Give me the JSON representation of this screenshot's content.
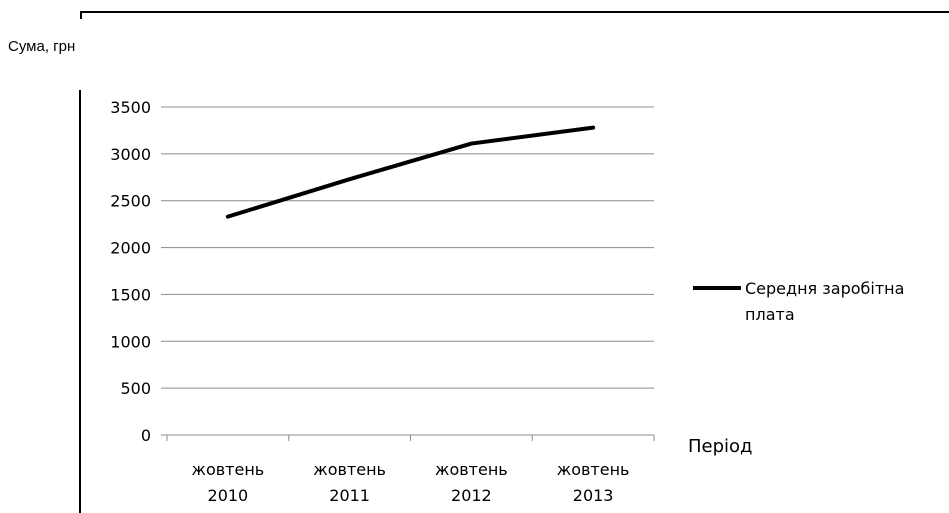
{
  "chart_data": {
    "type": "line",
    "ylabel": "Сума, грн",
    "xlabel": "Період",
    "categories": [
      [
        "жовтень",
        "2010"
      ],
      [
        "жовтень",
        "2011"
      ],
      [
        "жовтень",
        "2012"
      ],
      [
        "жовтень",
        "2013"
      ]
    ],
    "ylim": [
      0,
      3500
    ],
    "yticks": [
      0,
      500,
      1000,
      1500,
      2000,
      2500,
      3000,
      3500
    ],
    "grid": true,
    "legend_position": "right",
    "series": [
      {
        "name": [
          "Середня заробітна",
          "плата"
        ],
        "values": [
          2330,
          2730,
          3110,
          3280
        ],
        "color": "#000000"
      }
    ]
  }
}
